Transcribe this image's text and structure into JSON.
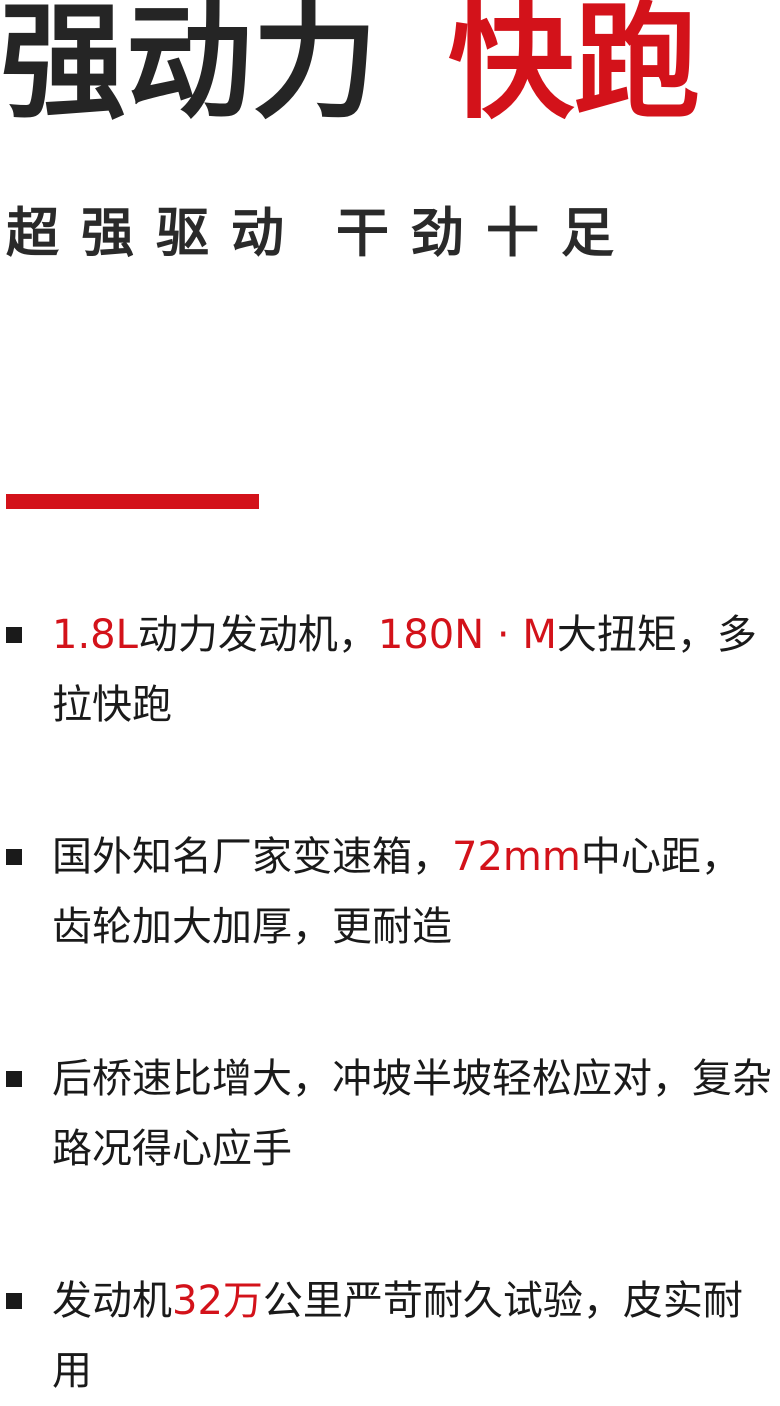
{
  "headline": {
    "part1": "强动力",
    "part2": "快跑"
  },
  "subheadline": {
    "part1": "超强驱动",
    "part2": "干劲十足"
  },
  "colors": {
    "accent": "#d3121a",
    "text": "#1a1a1a"
  },
  "features": [
    {
      "segments": [
        {
          "text": "1.8L",
          "highlight": true
        },
        {
          "text": "动力发动机，",
          "highlight": false
        },
        {
          "text": "180N · M",
          "highlight": true
        },
        {
          "text": "大扭矩，多拉快跑",
          "highlight": false
        }
      ]
    },
    {
      "segments": [
        {
          "text": "国外知名厂家变速箱，",
          "highlight": false
        },
        {
          "text": "72mm",
          "highlight": true
        },
        {
          "text": "中心距，齿轮加大加厚，更耐造",
          "highlight": false
        }
      ]
    },
    {
      "segments": [
        {
          "text": "后桥速比增大，冲坡半坡轻松应对，复杂路况得心应手",
          "highlight": false
        }
      ]
    },
    {
      "segments": [
        {
          "text": "发动机",
          "highlight": false
        },
        {
          "text": "32万",
          "highlight": true
        },
        {
          "text": "公里严苛耐久试验，皮实耐用",
          "highlight": false
        }
      ]
    }
  ]
}
